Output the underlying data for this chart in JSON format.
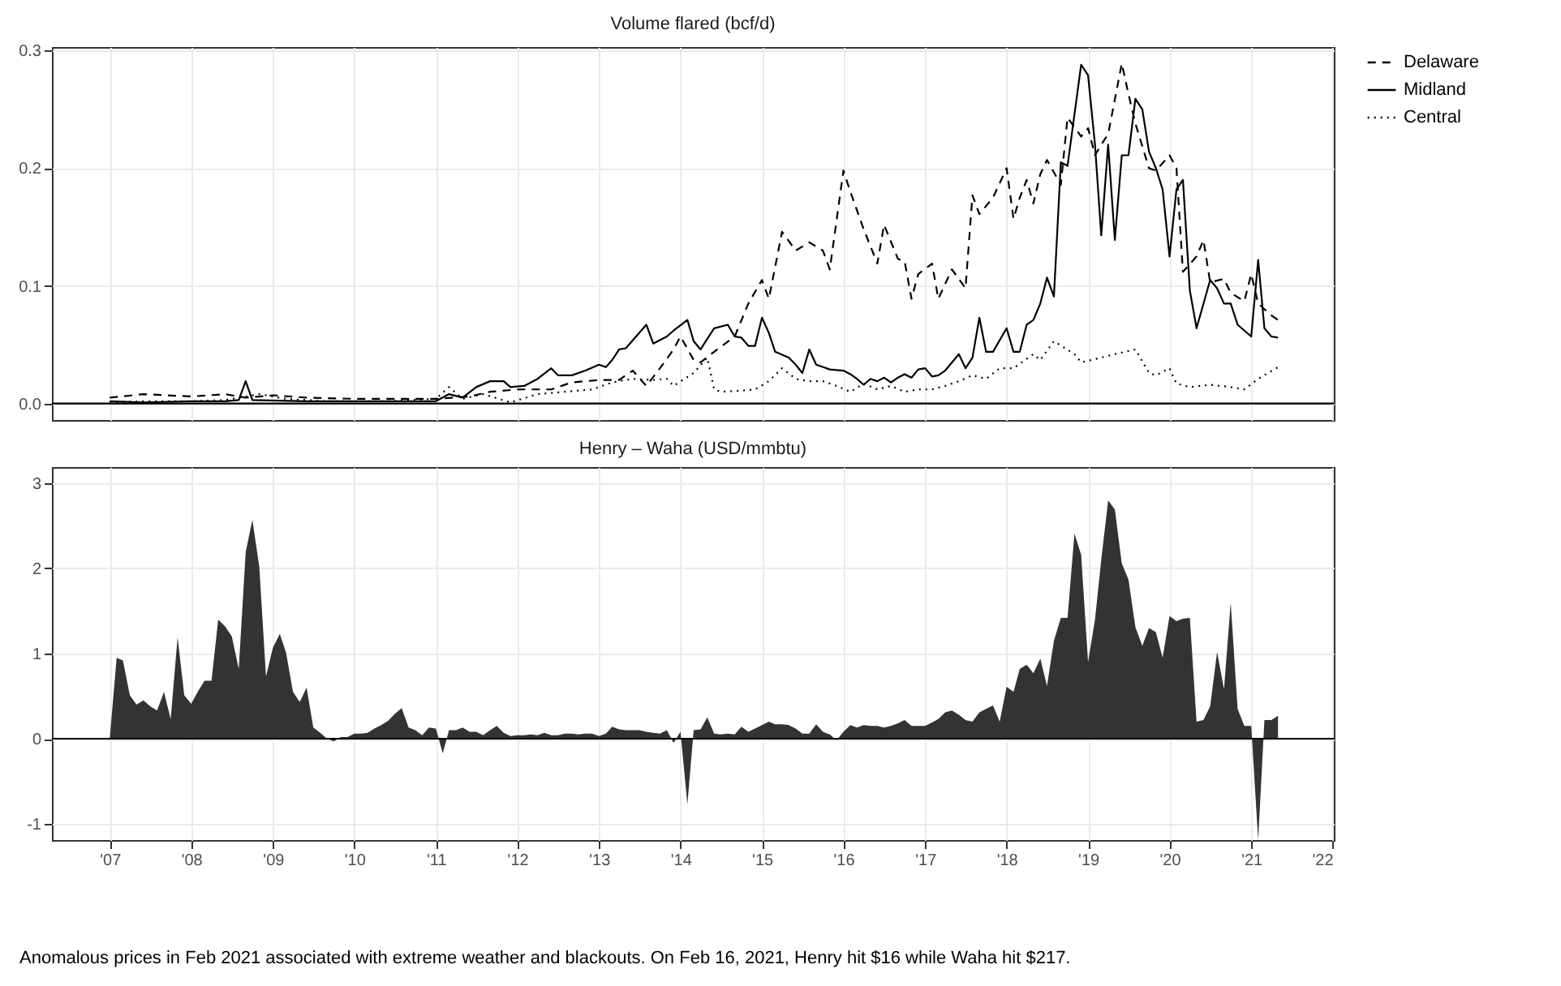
{
  "chart_data": [
    {
      "type": "line",
      "title": "Volume flared (bcf/d)",
      "xlim": [
        "2006-04-17",
        "2022-01-06"
      ],
      "xticks": [
        {
          "value": "2007",
          "label": null
        },
        {
          "value": "2008",
          "label": null
        },
        {
          "value": "2009",
          "label": null
        },
        {
          "value": "2010",
          "label": null
        },
        {
          "value": "2011",
          "label": null
        },
        {
          "value": "2012",
          "label": null
        },
        {
          "value": "2013",
          "label": null
        },
        {
          "value": "2014",
          "label": null
        },
        {
          "value": "2015",
          "label": null
        },
        {
          "value": "2016",
          "label": null
        },
        {
          "value": "2017",
          "label": null
        },
        {
          "value": "2018",
          "label": null
        },
        {
          "value": "2019",
          "label": null
        },
        {
          "value": "2020",
          "label": null
        },
        {
          "value": "2021",
          "label": null
        },
        {
          "value": "2022",
          "label": null
        }
      ],
      "ylim": [
        -0.014,
        0.303
      ],
      "yticks": [
        {
          "value": 0,
          "label": "0.0"
        },
        {
          "value": 0.1,
          "label": "0.1"
        },
        {
          "value": 0.2,
          "label": "0.2"
        },
        {
          "value": 0.3,
          "label": "0.3"
        }
      ],
      "grid": true,
      "legend": "right",
      "tick_labels": "y",
      "ref_lines": [
        {
          "axis": "y",
          "value": 0,
          "color": "#000000"
        }
      ],
      "series": [
        {
          "name": "Delaware",
          "color": "#000000",
          "line_style": "dashed",
          "x": [
            "2007-01",
            "2007-06",
            "2008-01",
            "2008-06",
            "2008-09",
            "2009-01",
            "2009-06",
            "2010-01",
            "2010-06",
            "2011-01",
            "2011-06",
            "2011-09",
            "2012-01",
            "2012-06",
            "2012-09",
            "2013-01",
            "2013-04",
            "2013-06",
            "2013-08",
            "2013-10",
            "2013-12",
            "2014-01",
            "2014-03",
            "2014-04",
            "2014-06",
            "2014-09",
            "2014-11",
            "2015-01",
            "2015-02",
            "2015-04",
            "2015-06",
            "2015-08",
            "2015-10",
            "2015-11",
            "2016-01",
            "2016-02",
            "2016-04",
            "2016-06",
            "2016-07",
            "2016-09",
            "2016-10",
            "2016-11",
            "2016-12",
            "2017-02",
            "2017-03",
            "2017-05",
            "2017-07",
            "2017-08",
            "2017-09",
            "2017-11",
            "2018-01",
            "2018-02",
            "2018-03",
            "2018-04",
            "2018-05",
            "2018-06",
            "2018-07",
            "2018-09",
            "2018-10",
            "2018-12",
            "2019-01",
            "2019-02",
            "2019-03",
            "2019-04",
            "2019-06",
            "2019-07",
            "2019-08",
            "2019-10",
            "2019-11",
            "2020-01",
            "2020-02",
            "2020-03",
            "2020-05",
            "2020-06",
            "2020-07",
            "2020-09",
            "2020-10",
            "2020-12",
            "2021-01",
            "2021-02",
            "2021-04",
            "2021-05"
          ],
          "values": [
            0.005,
            0.008,
            0.006,
            0.008,
            0.005,
            0.007,
            0.005,
            0.004,
            0.004,
            0.004,
            0.006,
            0.01,
            0.012,
            0.012,
            0.018,
            0.02,
            0.02,
            0.028,
            0.015,
            0.03,
            0.046,
            0.057,
            0.037,
            0.035,
            0.044,
            0.057,
            0.085,
            0.105,
            0.089,
            0.146,
            0.13,
            0.137,
            0.13,
            0.114,
            0.198,
            0.18,
            0.148,
            0.119,
            0.152,
            0.123,
            0.121,
            0.089,
            0.11,
            0.119,
            0.089,
            0.114,
            0.098,
            0.177,
            0.161,
            0.175,
            0.2,
            0.157,
            0.175,
            0.19,
            0.17,
            0.195,
            0.207,
            0.186,
            0.243,
            0.227,
            0.234,
            0.211,
            0.22,
            0.229,
            0.289,
            0.263,
            0.238,
            0.2,
            0.198,
            0.211,
            0.2,
            0.112,
            0.125,
            0.139,
            0.103,
            0.106,
            0.094,
            0.087,
            0.11,
            0.085,
            0.075,
            0.071
          ]
        },
        {
          "name": "Midland",
          "color": "#000000",
          "line_style": "solid",
          "x": [
            "2007-01",
            "2007-06",
            "2008-01",
            "2008-06",
            "2008-08",
            "2008-09",
            "2008-10",
            "2009-06",
            "2010-01",
            "2010-06",
            "2011-01",
            "2011-03",
            "2011-05",
            "2011-07",
            "2011-09",
            "2011-11",
            "2011-12",
            "2012-02",
            "2012-04",
            "2012-06",
            "2012-07",
            "2012-09",
            "2012-11",
            "2013-01",
            "2013-02",
            "2013-03",
            "2013-04",
            "2013-05",
            "2013-08",
            "2013-09",
            "2013-11",
            "2013-12",
            "2014-02",
            "2014-03",
            "2014-04",
            "2014-05",
            "2014-06",
            "2014-08",
            "2014-09",
            "2014-10",
            "2014-11",
            "2014-12",
            "2015-01",
            "2015-02",
            "2015-03",
            "2015-05",
            "2015-06",
            "2015-07",
            "2015-08",
            "2015-09",
            "2015-11",
            "2016-01",
            "2016-02",
            "2016-03",
            "2016-04",
            "2016-05",
            "2016-06",
            "2016-07",
            "2016-08",
            "2016-09",
            "2016-10",
            "2016-11",
            "2016-12",
            "2017-01",
            "2017-02",
            "2017-03",
            "2017-04",
            "2017-06",
            "2017-07",
            "2017-08",
            "2017-09",
            "2017-10",
            "2017-11",
            "2018-01",
            "2018-02",
            "2018-03",
            "2018-04",
            "2018-05",
            "2018-06",
            "2018-07",
            "2018-08",
            "2018-09",
            "2018-10",
            "2018-12",
            "2019-01",
            "2019-02",
            "2019-03",
            "2019-04",
            "2019-05",
            "2019-06",
            "2019-07",
            "2019-08",
            "2019-09",
            "2019-10",
            "2019-11",
            "2019-12",
            "2020-01",
            "2020-02",
            "2020-03",
            "2020-04",
            "2020-05",
            "2020-07",
            "2020-08",
            "2020-09",
            "2020-10",
            "2020-11",
            "2021-01",
            "2021-02",
            "2021-03",
            "2021-04",
            "2021-05"
          ],
          "values": [
            0.002,
            0.001,
            0.002,
            0.002,
            0.003,
            0.019,
            0.003,
            0.002,
            0.002,
            0.002,
            0.002,
            0.008,
            0.005,
            0.014,
            0.019,
            0.019,
            0.014,
            0.015,
            0.021,
            0.03,
            0.024,
            0.024,
            0.028,
            0.033,
            0.031,
            0.037,
            0.046,
            0.047,
            0.067,
            0.051,
            0.057,
            0.062,
            0.071,
            0.053,
            0.046,
            0.055,
            0.064,
            0.067,
            0.057,
            0.056,
            0.049,
            0.049,
            0.073,
            0.06,
            0.044,
            0.039,
            0.033,
            0.026,
            0.046,
            0.033,
            0.029,
            0.028,
            0.025,
            0.021,
            0.016,
            0.021,
            0.019,
            0.022,
            0.018,
            0.022,
            0.025,
            0.022,
            0.029,
            0.03,
            0.023,
            0.024,
            0.028,
            0.042,
            0.03,
            0.039,
            0.073,
            0.044,
            0.044,
            0.064,
            0.044,
            0.044,
            0.067,
            0.071,
            0.085,
            0.107,
            0.091,
            0.205,
            0.202,
            0.288,
            0.279,
            0.22,
            0.143,
            0.22,
            0.139,
            0.211,
            0.211,
            0.259,
            0.25,
            0.214,
            0.2,
            0.182,
            0.125,
            0.182,
            0.19,
            0.096,
            0.064,
            0.105,
            0.098,
            0.085,
            0.085,
            0.067,
            0.057,
            0.122,
            0.064,
            0.057,
            0.056
          ]
        },
        {
          "name": "Central",
          "color": "#000000",
          "line_style": "dotted",
          "x": [
            "2007-01",
            "2007-06",
            "2008-01",
            "2008-06",
            "2008-11",
            "2009-03",
            "2009-09",
            "2010-06",
            "2011-01",
            "2011-03",
            "2011-05",
            "2011-08",
            "2011-12",
            "2012-04",
            "2012-08",
            "2012-12",
            "2013-03",
            "2013-06",
            "2013-09",
            "2013-11",
            "2013-12",
            "2014-03",
            "2014-05",
            "2014-06",
            "2014-07",
            "2014-10",
            "2014-12",
            "2015-02",
            "2015-04",
            "2015-06",
            "2015-08",
            "2015-10",
            "2015-12",
            "2016-02",
            "2016-04",
            "2016-06",
            "2016-08",
            "2016-10",
            "2016-12",
            "2017-02",
            "2017-04",
            "2017-06",
            "2017-08",
            "2017-10",
            "2017-12",
            "2018-02",
            "2018-05",
            "2018-06",
            "2018-08",
            "2018-11",
            "2018-12",
            "2019-03",
            "2019-05",
            "2019-08",
            "2019-10",
            "2019-11",
            "2020-01",
            "2020-02",
            "2020-04",
            "2020-07",
            "2020-10",
            "2020-12",
            "2021-02",
            "2021-05"
          ],
          "values": [
            0.001,
            0.002,
            0.002,
            0.003,
            0.008,
            0.004,
            0.002,
            0.002,
            0.004,
            0.014,
            0.004,
            0.008,
            0.001,
            0.008,
            0.01,
            0.012,
            0.018,
            0.021,
            0.02,
            0.021,
            0.015,
            0.026,
            0.039,
            0.012,
            0.01,
            0.011,
            0.012,
            0.019,
            0.03,
            0.021,
            0.019,
            0.019,
            0.015,
            0.01,
            0.017,
            0.012,
            0.015,
            0.01,
            0.012,
            0.012,
            0.015,
            0.019,
            0.024,
            0.021,
            0.03,
            0.03,
            0.042,
            0.037,
            0.053,
            0.042,
            0.035,
            0.039,
            0.042,
            0.046,
            0.026,
            0.024,
            0.03,
            0.017,
            0.014,
            0.016,
            0.014,
            0.012,
            0.021,
            0.031
          ]
        }
      ]
    },
    {
      "type": "area",
      "title": "Henry – Waha (USD/mmbtu)",
      "xlim": [
        "2006-04-17",
        "2022-01-06"
      ],
      "xticks": [
        {
          "value": "2007",
          "label": "'07"
        },
        {
          "value": "2008",
          "label": "'08"
        },
        {
          "value": "2009",
          "label": "'09"
        },
        {
          "value": "2010",
          "label": "'10"
        },
        {
          "value": "2011",
          "label": "'11"
        },
        {
          "value": "2012",
          "label": "'12"
        },
        {
          "value": "2013",
          "label": "'13"
        },
        {
          "value": "2014",
          "label": "'14"
        },
        {
          "value": "2015",
          "label": "'15"
        },
        {
          "value": "2016",
          "label": "'16"
        },
        {
          "value": "2017",
          "label": "'17"
        },
        {
          "value": "2018",
          "label": "'18"
        },
        {
          "value": "2019",
          "label": "'19"
        },
        {
          "value": "2020",
          "label": "'20"
        },
        {
          "value": "2021",
          "label": "'21"
        },
        {
          "value": "2022",
          "label": "'22"
        }
      ],
      "ylim": [
        -1.19,
        3.19
      ],
      "yticks": [
        -1,
        0,
        1,
        2,
        3
      ],
      "grid": true,
      "ref_lines": [
        {
          "axis": "y",
          "value": 0,
          "color": "#000000"
        }
      ],
      "annotations": [
        "Anomalous prices in Feb 2021 associated with extreme weather and blackouts. On Feb 16, 2021, Henry hit $16 while Waha hit $217."
      ],
      "series": [
        {
          "color": "#333333",
          "x": [
            "2007-01",
            "2007-02",
            "2007-03",
            "2007-04",
            "2007-05",
            "2007-06",
            "2007-07",
            "2007-08",
            "2007-09",
            "2007-10",
            "2007-11",
            "2007-12",
            "2008-01",
            "2008-02",
            "2008-03",
            "2008-04",
            "2008-05",
            "2008-06",
            "2008-07",
            "2008-08",
            "2008-09",
            "2008-10",
            "2008-11",
            "2008-12",
            "2009-01",
            "2009-02",
            "2009-03",
            "2009-04",
            "2009-05",
            "2009-06",
            "2009-07",
            "2009-08",
            "2009-09",
            "2009-10",
            "2009-11",
            "2009-12",
            "2010-01",
            "2010-02",
            "2010-03",
            "2010-04",
            "2010-05",
            "2010-06",
            "2010-07",
            "2010-08",
            "2010-09",
            "2010-10",
            "2010-11",
            "2010-12",
            "2011-01",
            "2011-02",
            "2011-03",
            "2011-04",
            "2011-05",
            "2011-06",
            "2011-07",
            "2011-08",
            "2011-09",
            "2011-10",
            "2011-11",
            "2011-12",
            "2012-01",
            "2012-02",
            "2012-03",
            "2012-04",
            "2012-05",
            "2012-06",
            "2012-07",
            "2012-08",
            "2012-09",
            "2012-10",
            "2012-11",
            "2012-12",
            "2013-01",
            "2013-02",
            "2013-03",
            "2013-04",
            "2013-05",
            "2013-06",
            "2013-07",
            "2013-08",
            "2013-09",
            "2013-10",
            "2013-11",
            "2013-12",
            "2014-01",
            "2014-02",
            "2014-03",
            "2014-04",
            "2014-05",
            "2014-06",
            "2014-07",
            "2014-08",
            "2014-09",
            "2014-10",
            "2014-11",
            "2014-12",
            "2015-01",
            "2015-02",
            "2015-03",
            "2015-04",
            "2015-05",
            "2015-06",
            "2015-07",
            "2015-08",
            "2015-09",
            "2015-10",
            "2015-11",
            "2015-12",
            "2016-01",
            "2016-02",
            "2016-03",
            "2016-04",
            "2016-05",
            "2016-06",
            "2016-07",
            "2016-08",
            "2016-09",
            "2016-10",
            "2016-11",
            "2016-12",
            "2017-01",
            "2017-02",
            "2017-03",
            "2017-04",
            "2017-05",
            "2017-06",
            "2017-07",
            "2017-08",
            "2017-09",
            "2017-10",
            "2017-11",
            "2017-12",
            "2018-01",
            "2018-02",
            "2018-03",
            "2018-04",
            "2018-05",
            "2018-06",
            "2018-07",
            "2018-08",
            "2018-09",
            "2018-10",
            "2018-11",
            "2018-12",
            "2019-01",
            "2019-02",
            "2019-03",
            "2019-04",
            "2019-05",
            "2019-06",
            "2019-07",
            "2019-08",
            "2019-09",
            "2019-10",
            "2019-11",
            "2019-12",
            "2020-01",
            "2020-02",
            "2020-03",
            "2020-04",
            "2020-05",
            "2020-06",
            "2020-07",
            "2020-08",
            "2020-09",
            "2020-10",
            "2020-11",
            "2020-12",
            "2021-01",
            "2021-02",
            "2021-03",
            "2021-04",
            "2021-05"
          ],
          "values": [
            0,
            0.95,
            0.92,
            0.51,
            0.4,
            0.45,
            0.38,
            0.33,
            0.55,
            0.23,
            1.19,
            0.51,
            0.41,
            0.56,
            0.68,
            0.68,
            1.4,
            1.32,
            1.2,
            0.82,
            2.19,
            2.57,
            2.02,
            0.73,
            1.07,
            1.23,
            1.01,
            0.55,
            0.43,
            0.6,
            0.13,
            0.07,
            0,
            -0.03,
            0.02,
            0.02,
            0.06,
            0.06,
            0.07,
            0.12,
            0.16,
            0.21,
            0.29,
            0.36,
            0.13,
            0.1,
            0.04,
            0.13,
            0.12,
            -0.17,
            0.1,
            0.1,
            0.13,
            0.08,
            0.08,
            0.04,
            0.1,
            0.15,
            0.07,
            0.03,
            0.04,
            0.04,
            0.05,
            0.04,
            0.07,
            0.04,
            0.04,
            0.06,
            0.06,
            0.05,
            0.06,
            0.06,
            0.03,
            0.06,
            0.14,
            0.11,
            0.1,
            0.1,
            0.1,
            0.08,
            0.07,
            0.06,
            0.1,
            -0.05,
            0.08,
            -0.77,
            0.1,
            0.11,
            0.25,
            0.06,
            0.05,
            0.06,
            0.05,
            0.14,
            0.08,
            0.12,
            0.16,
            0.2,
            0.17,
            0.17,
            0.16,
            0.12,
            0.06,
            0.06,
            0.17,
            0.08,
            0.05,
            -0.02,
            0.08,
            0.16,
            0.13,
            0.16,
            0.15,
            0.15,
            0.13,
            0.15,
            0.18,
            0.22,
            0.15,
            0.15,
            0.15,
            0.19,
            0.23,
            0.31,
            0.33,
            0.28,
            0.22,
            0.2,
            0.31,
            0.35,
            0.39,
            0.2,
            0.61,
            0.55,
            0.82,
            0.87,
            0.77,
            0.94,
            0.62,
            1.15,
            1.42,
            1.42,
            2.41,
            2.16,
            0.9,
            1.4,
            2.1,
            2.8,
            2.69,
            2.06,
            1.87,
            1.31,
            1.09,
            1.3,
            1.25,
            0.95,
            1.44,
            1.38,
            1.41,
            1.42,
            0.2,
            0.22,
            0.38,
            1.02,
            0.58,
            1.6,
            0.35,
            0.15,
            0.15,
            -1.19,
            0.22,
            0.22,
            0.27
          ]
        }
      ]
    }
  ]
}
